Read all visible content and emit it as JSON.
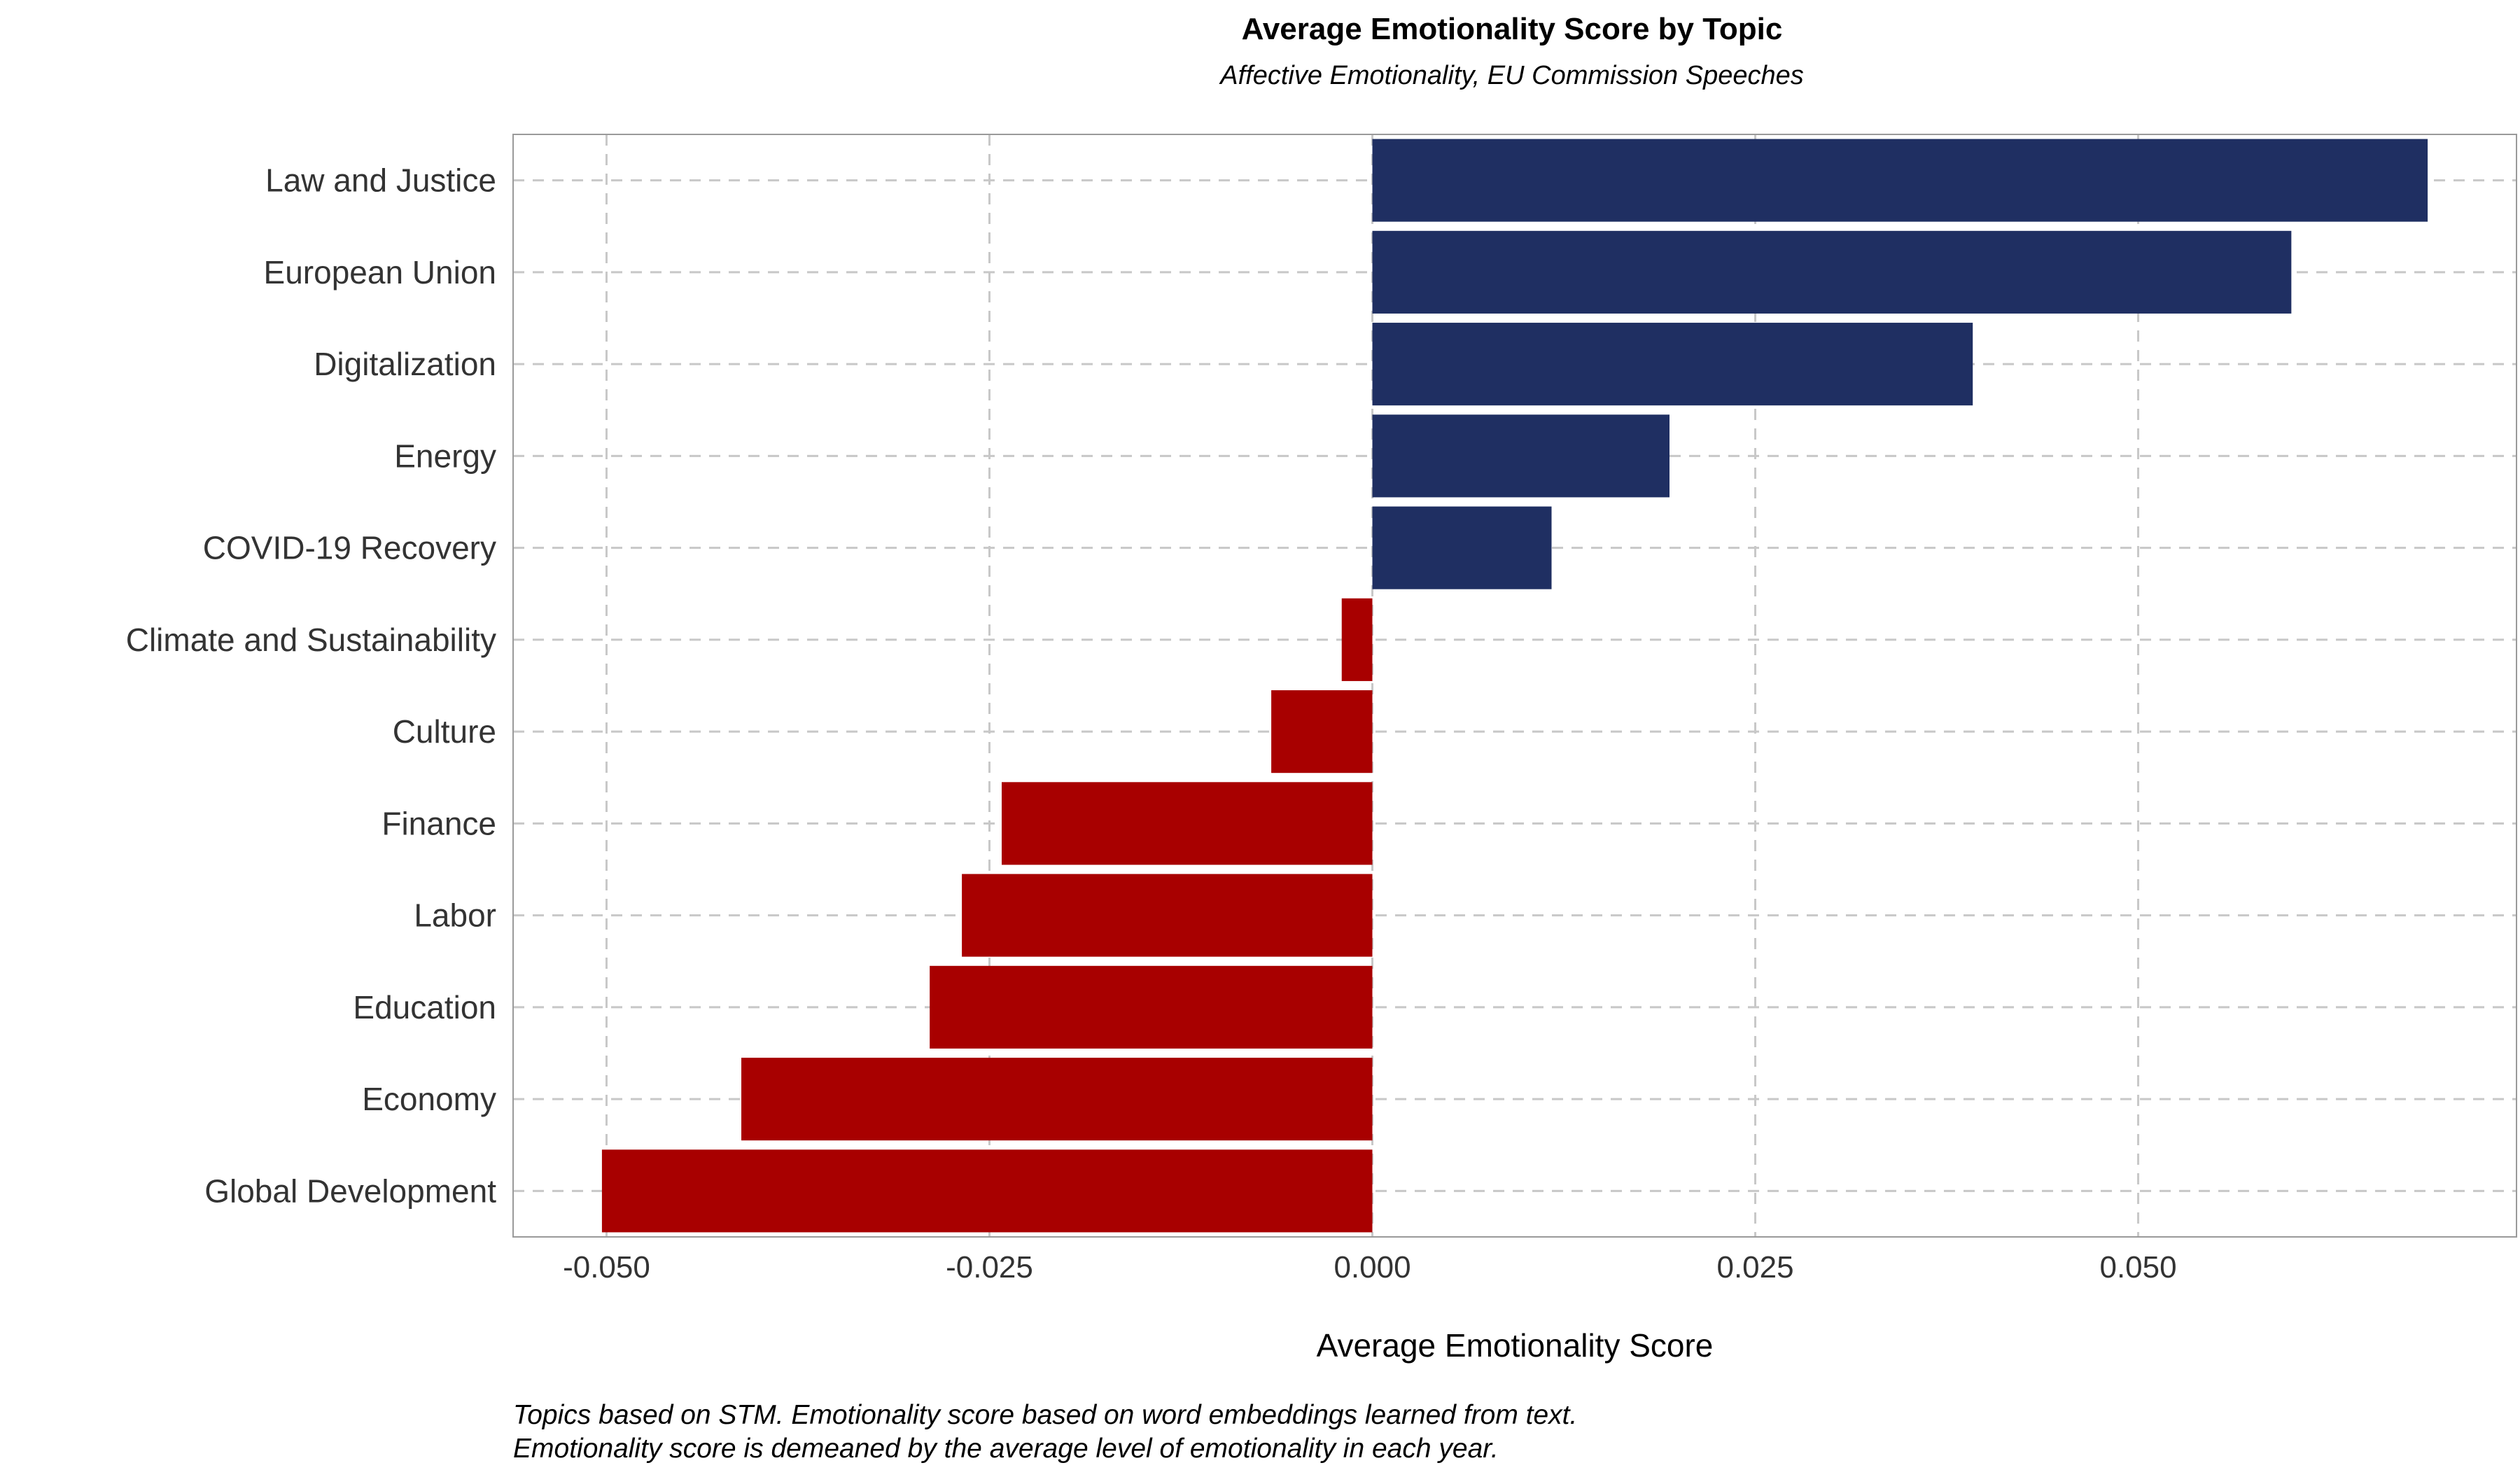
{
  "chart_data": {
    "type": "bar",
    "orientation": "horizontal",
    "title": "Average Emotionality Score by Topic",
    "subtitle": "Affective Emotionality, EU Commission Speeches",
    "xlabel": "Average Emotionality Score",
    "ylabel": "",
    "categories": [
      "Law and Justice",
      "European Union",
      "Digitalization",
      "Energy",
      "COVID-19 Recovery",
      "Climate and Sustainability",
      "Culture",
      "Finance",
      "Labor",
      "Education",
      "Economy",
      "Global Development"
    ],
    "values": [
      0.0689,
      0.06,
      0.0392,
      0.0194,
      0.0117,
      -0.002,
      -0.0066,
      -0.0242,
      -0.0268,
      -0.0289,
      -0.0412,
      -0.0503
    ],
    "xlim": [
      -0.0561,
      0.0747
    ],
    "xticks": [
      -0.05,
      -0.025,
      0.0,
      0.025,
      0.05
    ],
    "xtick_labels": [
      "-0.050",
      "-0.025",
      "0.000",
      "0.025",
      "0.050"
    ],
    "grid": true,
    "legend": "none",
    "colors": {
      "positive": "#1f2f62",
      "negative": "#a80000",
      "grid": "#c8c8c8",
      "panel_border": "#9a9a9a"
    },
    "caption": [
      "Topics based on STM. Emotionality score based on word embeddings learned from text.",
      "Emotionality score is demeaned by the average level of emotionality in each year."
    ]
  }
}
